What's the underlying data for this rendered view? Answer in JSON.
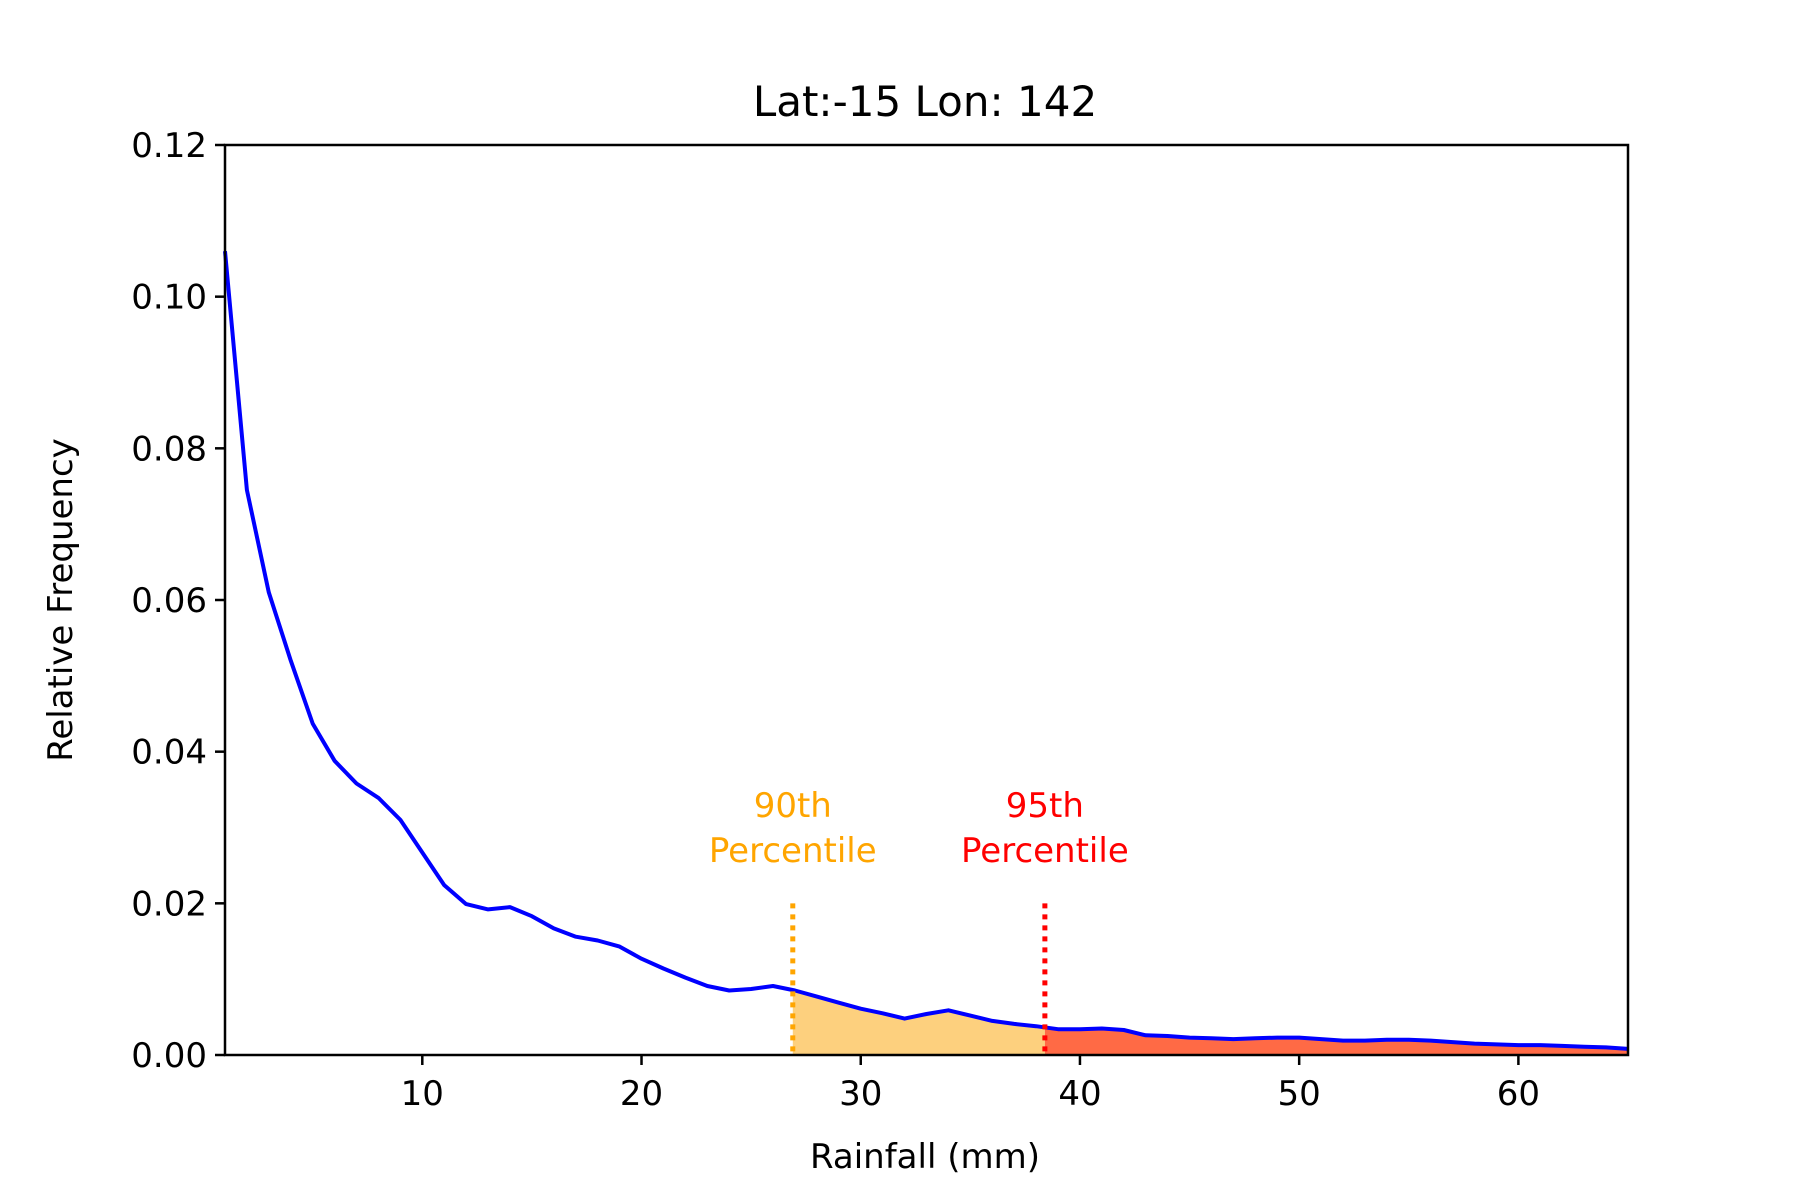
{
  "chart_data": {
    "type": "line",
    "title": "Lat:-15 Lon: 142",
    "xlabel": "Rainfall (mm)",
    "ylabel": "Relative Frequency",
    "xlim": [
      1,
      65
    ],
    "ylim": [
      0,
      0.12
    ],
    "xticks": [
      10,
      20,
      30,
      40,
      50,
      60
    ],
    "yticks": [
      "0.00",
      "0.02",
      "0.04",
      "0.06",
      "0.08",
      "0.10",
      "0.12"
    ],
    "grid": false,
    "series": [
      {
        "color": "#0000ff",
        "x": [
          1,
          2,
          3,
          4,
          5,
          6,
          7,
          8,
          9,
          10,
          11,
          12,
          13,
          14,
          15,
          16,
          17,
          18,
          19,
          20,
          21,
          22,
          23,
          24,
          25,
          26,
          27,
          28,
          29,
          30,
          31,
          32,
          33,
          34,
          35,
          36,
          37,
          38,
          39,
          40,
          41,
          42,
          43,
          44,
          45,
          46,
          47,
          48,
          49,
          50,
          51,
          52,
          53,
          54,
          55,
          56,
          57,
          58,
          59,
          60,
          61,
          62,
          63,
          64,
          65
        ],
        "y": [
          0.106,
          0.0745,
          0.061,
          0.052,
          0.0437,
          0.0388,
          0.0358,
          0.0339,
          0.031,
          0.0267,
          0.0224,
          0.0199,
          0.0192,
          0.0195,
          0.0183,
          0.0167,
          0.0156,
          0.0151,
          0.0143,
          0.0127,
          0.0114,
          0.0102,
          0.0091,
          0.0085,
          0.0087,
          0.0091,
          0.0085,
          0.0077,
          0.0069,
          0.0061,
          0.0055,
          0.0048,
          0.0054,
          0.0059,
          0.0052,
          0.0045,
          0.0041,
          0.0038,
          0.0034,
          0.0034,
          0.0035,
          0.0033,
          0.0026,
          0.0025,
          0.0023,
          0.0022,
          0.0021,
          0.0022,
          0.0023,
          0.0023,
          0.0021,
          0.0019,
          0.0019,
          0.002,
          0.002,
          0.0019,
          0.0017,
          0.0015,
          0.0014,
          0.0013,
          0.0013,
          0.0012,
          0.0011,
          0.001,
          0.0008
        ]
      }
    ],
    "percentiles": [
      {
        "value": 26.9,
        "label_line1": "90th",
        "label_line2": "Percentile",
        "color": "#ffa500",
        "fill": "#fdd07e"
      },
      {
        "value": 38.4,
        "label_line1": "95th",
        "label_line2": "Percentile",
        "color": "#ff0000",
        "fill": "#ff6a45"
      }
    ]
  }
}
